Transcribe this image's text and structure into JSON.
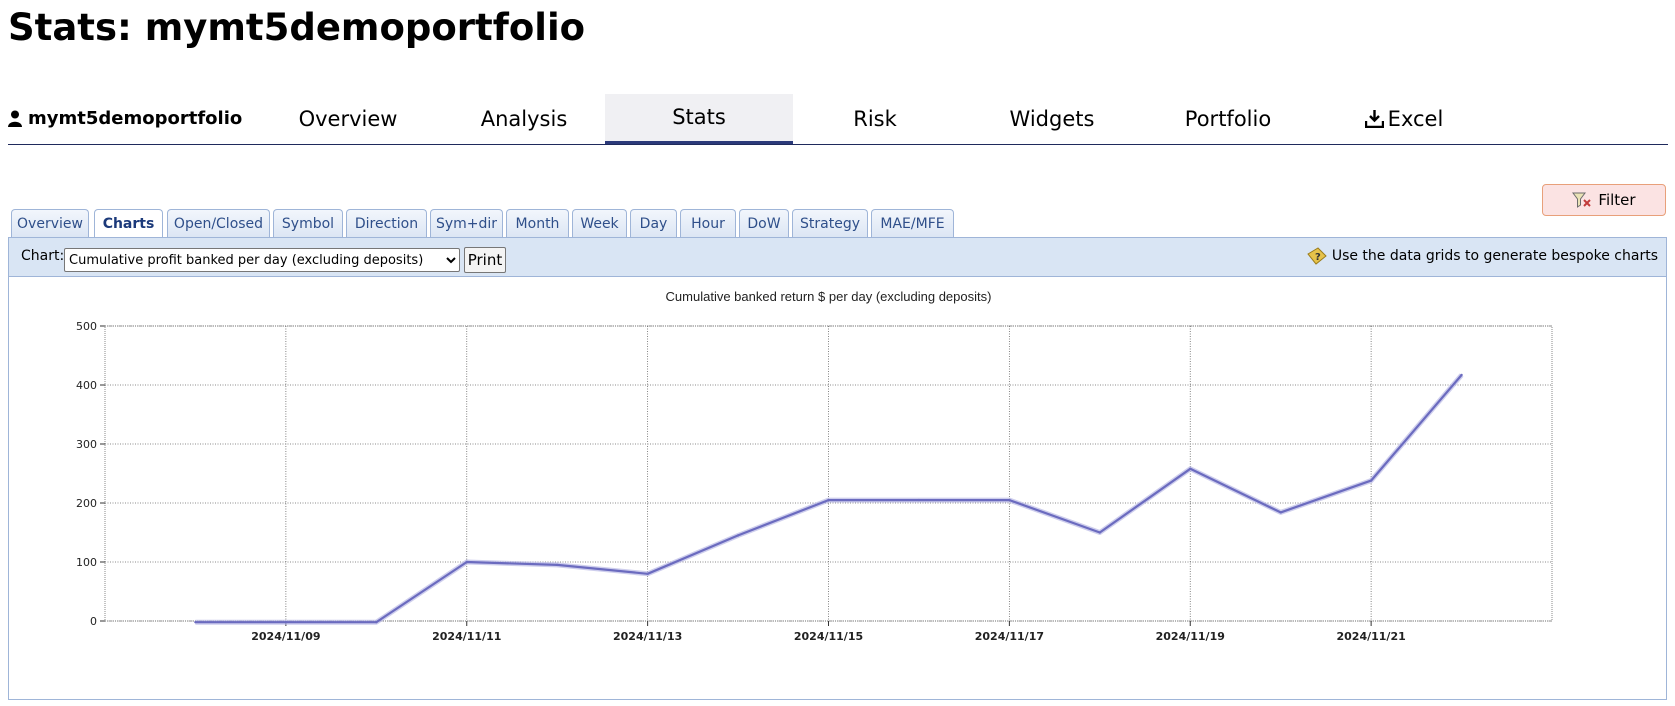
{
  "page": {
    "title": "Stats: mymt5demoportfolio"
  },
  "topnav": {
    "user": "mymt5demoportfolio",
    "items": [
      {
        "label": "Overview",
        "active": false
      },
      {
        "label": "Analysis",
        "active": false
      },
      {
        "label": "Stats",
        "active": true
      },
      {
        "label": "Risk",
        "active": false
      },
      {
        "label": "Widgets",
        "active": false
      },
      {
        "label": "Portfolio",
        "active": false
      },
      {
        "label": "Excel",
        "active": false,
        "icon": "download-icon"
      }
    ]
  },
  "filter": {
    "label": "Filter",
    "icon": "filter-icon",
    "bg": "#fbe3e3"
  },
  "subtabs": [
    "Overview",
    "Charts",
    "Open/Closed",
    "Symbol",
    "Direction",
    "Sym+dir",
    "Month",
    "Week",
    "Day",
    "Hour",
    "DoW",
    "Strategy",
    "MAE/MFE"
  ],
  "subtab_active": "Charts",
  "toolbar": {
    "chart_label": "Chart:",
    "chart_selected": "Cumulative profit banked per day (excluding deposits)",
    "print_label": "Print",
    "hint": "Use the data grids to generate bespoke charts",
    "hint_icon": "help-icon"
  },
  "colors": {
    "accent": "#2b3a7a",
    "line": "#6b6bbf",
    "tab_text": "#2f4f8a"
  },
  "chart_data": {
    "type": "line",
    "title": "Cumulative banked return $ per day (excluding deposits)",
    "x_tick_labels": [
      "2024/11/09",
      "2024/11/11",
      "2024/11/13",
      "2024/11/15",
      "2024/11/17",
      "2024/11/19",
      "2024/11/21"
    ],
    "y_ticks": [
      0,
      100,
      200,
      300,
      400,
      500
    ],
    "ylim": [
      0,
      500
    ],
    "xlim": [
      "2024/11/07",
      "2024/11/23"
    ],
    "grid": true,
    "series": [
      {
        "x": [
          "2024/11/08",
          "2024/11/09",
          "2024/11/10",
          "2024/11/11",
          "2024/11/12",
          "2024/11/13",
          "2024/11/14",
          "2024/11/15",
          "2024/11/16",
          "2024/11/17",
          "2024/11/18",
          "2024/11/19",
          "2024/11/20",
          "2024/11/21",
          "2024/11/22"
        ],
        "values": [
          -2,
          -2,
          -2,
          100,
          95,
          80,
          145,
          205,
          205,
          205,
          150,
          258,
          184,
          238,
          417
        ]
      }
    ]
  }
}
